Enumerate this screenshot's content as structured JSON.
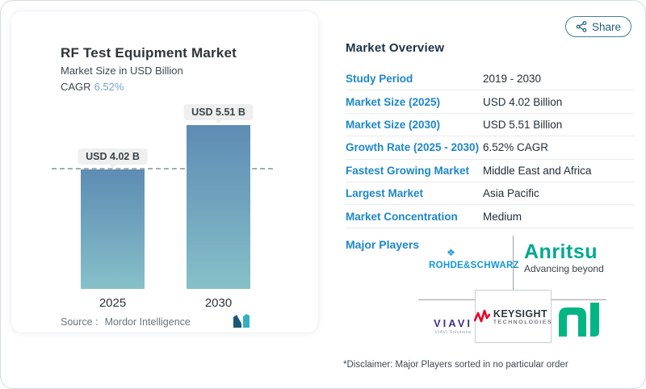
{
  "page": {
    "share_label": "Share",
    "disclaimer": "*Disclaimer: Major Players sorted in no particular order"
  },
  "chart_panel": {
    "title": "RF Test Equipment Market",
    "subtitle": "Market Size in USD Billion",
    "cagr_label": "CAGR",
    "cagr_value": "6.52%",
    "source_label": "Source :",
    "source_name": "Mordor Intelligence"
  },
  "chart_data": {
    "type": "bar",
    "title": "RF Test Equipment Market",
    "subtitle": "Market Size in USD Billion",
    "ylabel": "Market Size in USD Billion",
    "categories": [
      "2025",
      "2030"
    ],
    "values": [
      4.02,
      5.51
    ],
    "data_labels": [
      "USD 4.02 B",
      "USD 5.51 B"
    ],
    "cagr": "6.52%",
    "reference_line_value": 4.02,
    "grid": false,
    "legend_position": "none",
    "bar_gradient_top": "#5e8cb3",
    "bar_gradient_bottom": "#87c0c9"
  },
  "overview": {
    "heading": "Market Overview",
    "rows": [
      {
        "label": "Study Period",
        "value": "2019 - 2030"
      },
      {
        "label": "Market Size (2025)",
        "value": "USD 4.02 Billion"
      },
      {
        "label": "Market Size (2030)",
        "value": "USD 5.51 Billion"
      },
      {
        "label": "Growth Rate (2025 - 2030)",
        "value": "6.52% CAGR"
      },
      {
        "label": "Fastest Growing Market",
        "value": "Middle East and Africa"
      },
      {
        "label": "Largest Market",
        "value": "Asia Pacific"
      },
      {
        "label": "Market Concentration",
        "value": "Medium"
      }
    ]
  },
  "major_players": {
    "label": "Major Players",
    "players": [
      {
        "name": "ROHDE&SCHWARZ"
      },
      {
        "name": "Anritsu",
        "tagline": "Advancing beyond"
      },
      {
        "name": "VIAVI",
        "tagline": "VIAVI Solutions"
      },
      {
        "name": "KEYSIGHT",
        "sub": "TECHNOLOGIES"
      },
      {
        "name": "NI"
      }
    ]
  },
  "colors": {
    "accent_blue": "#1d87c9",
    "cagr_blue": "#72a7cf",
    "heading_navy": "#1d3245",
    "bar_top": "#5e8cb3",
    "bar_bottom": "#87c0c9",
    "rohde_schwarz_blue": "#1596d3",
    "anritsu_green": "#00a98e",
    "viavi_purple": "#413281",
    "keysight_red": "#e90029",
    "ni_green": "#03b585",
    "share_teal": "#21607a"
  }
}
